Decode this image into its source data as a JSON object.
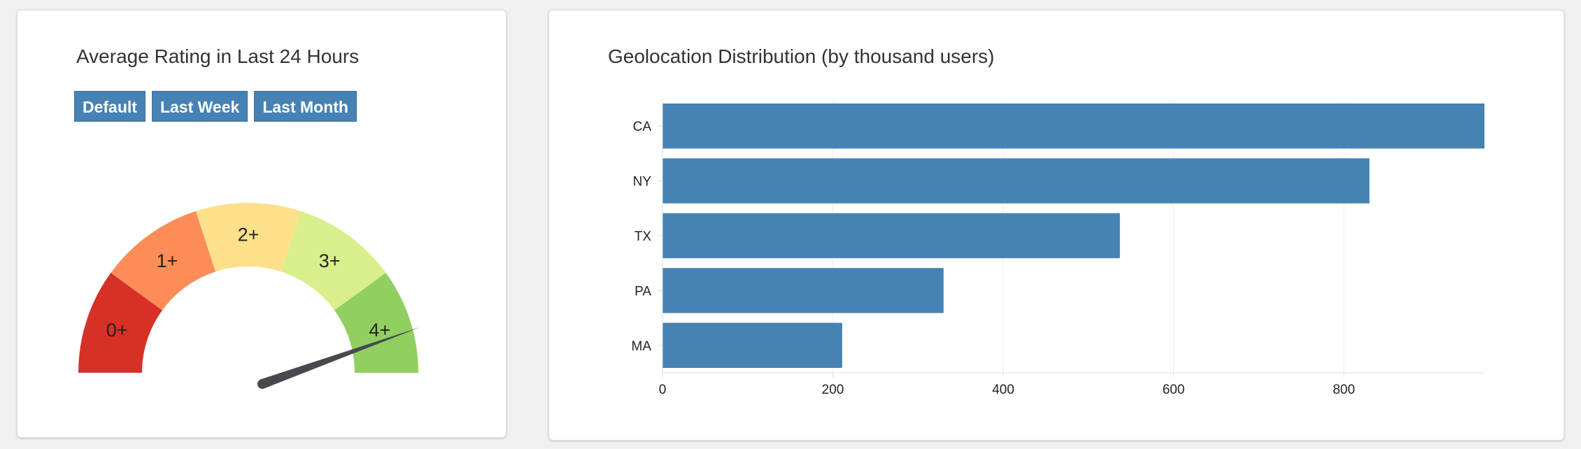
{
  "rating_panel": {
    "title": "Average Rating in Last 24 Hours",
    "buttons": [
      {
        "label": "Default"
      },
      {
        "label": "Last Week"
      },
      {
        "label": "Last Month"
      }
    ],
    "gauge": {
      "segments": [
        {
          "label": "0+",
          "color": "#d73027"
        },
        {
          "label": "1+",
          "color": "#fc8d59"
        },
        {
          "label": "2+",
          "color": "#fee08b"
        },
        {
          "label": "3+",
          "color": "#d9ef8b"
        },
        {
          "label": "4+",
          "color": "#91cf60"
        }
      ],
      "min": 0,
      "max": 5,
      "value": 4.45,
      "needle_color": "#464a4f"
    }
  },
  "geo_panel": {
    "title": "Geolocation Distribution (by thousand users)",
    "bar_color": "#4682b4"
  },
  "chart_data": {
    "type": "bar",
    "orientation": "horizontal",
    "categories": [
      "CA",
      "NY",
      "TX",
      "PA",
      "MA"
    ],
    "values": [
      965,
      830,
      537,
      330,
      211
    ],
    "xlim": [
      0,
      965
    ],
    "xticks": [
      0,
      200,
      400,
      600,
      800
    ],
    "grid": true,
    "title": "Geolocation Distribution (by thousand users)",
    "xlabel": "",
    "ylabel": ""
  }
}
